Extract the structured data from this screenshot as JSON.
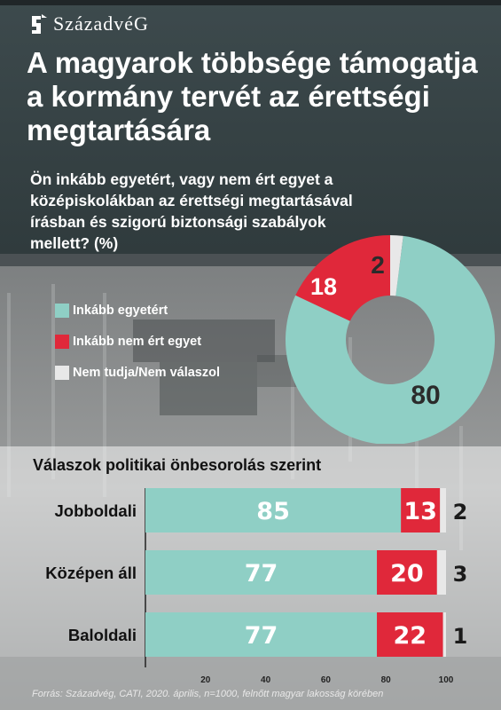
{
  "brand": {
    "name": "SzázadvéG",
    "icon": "szazadveg-logo-icon"
  },
  "title": "A magyarok többsége támogatja a kormány tervét az érettségi megtartására",
  "subtitle": "Ön inkább egyetért, vagy nem ért egyet a középiskolákban az érettségi megtartásával írásban és szigorú biztonsági szabályok mellett? (%)",
  "legend": [
    {
      "label": "Inkább egyetért",
      "color": "#8fcfc5"
    },
    {
      "label": "Inkább nem ért egyet",
      "color": "#e0283a"
    },
    {
      "label": "Nem tudja/Nem válaszol",
      "color": "#e8e8e8"
    }
  ],
  "source": "Forrás: Századvég, CATI, 2020. április, n=1000, felnőtt magyar lakosság körében",
  "chart_data": [
    {
      "type": "pie",
      "categories": [
        "Inkább egyetért",
        "Inkább nem ért egyet",
        "Nem tudja/Nem válaszol"
      ],
      "values": [
        80,
        18,
        2
      ],
      "colors": [
        "#8fcfc5",
        "#e0283a",
        "#e8e8e8"
      ]
    },
    {
      "type": "bar",
      "orientation": "horizontal",
      "stacked": true,
      "title": "Válaszok politikai önbesorolás szerint",
      "categories": [
        "Jobboldali",
        "Középen áll",
        "Baloldali"
      ],
      "series": [
        {
          "name": "Inkább egyetért",
          "values": [
            85,
            77,
            77
          ],
          "color": "#8fcfc5"
        },
        {
          "name": "Inkább nem ért egyet",
          "values": [
            13,
            20,
            22
          ],
          "color": "#e0283a"
        },
        {
          "name": "Nem tudja/Nem válaszol",
          "values": [
            2,
            3,
            1
          ],
          "color": "#e8e8e8"
        }
      ],
      "xlim": [
        0,
        100
      ],
      "xticks": [
        20,
        40,
        60,
        80,
        100
      ]
    }
  ]
}
